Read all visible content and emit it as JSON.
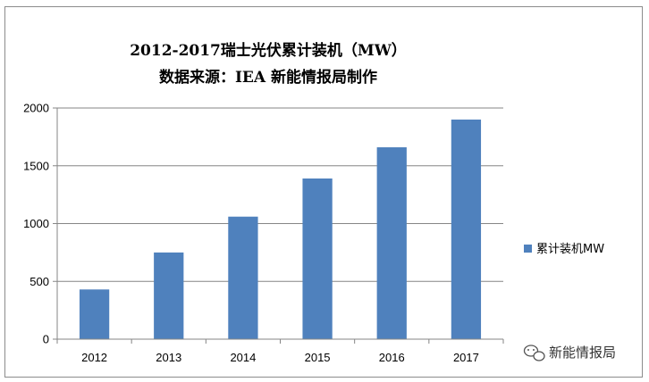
{
  "chart_data": {
    "type": "bar",
    "title": "2012-2017瑞士光伏累计装机（MW）",
    "subtitle": "数据来源：IEA 新能情报局制作",
    "categories": [
      "2012",
      "2013",
      "2014",
      "2015",
      "2016",
      "2017"
    ],
    "series": [
      {
        "name": "累计装机MW",
        "values": [
          430,
          750,
          1060,
          1390,
          1660,
          1900
        ]
      }
    ],
    "ylim": [
      0,
      2000
    ],
    "yticks": [
      0,
      500,
      1000,
      1500,
      2000
    ],
    "grid": true,
    "legend": "right",
    "colors": {
      "bar": "#4f81bd",
      "grid": "#868686",
      "axis": "#868686"
    }
  },
  "watermark": {
    "text": "新能情报局",
    "icon": "wechat-icon"
  }
}
